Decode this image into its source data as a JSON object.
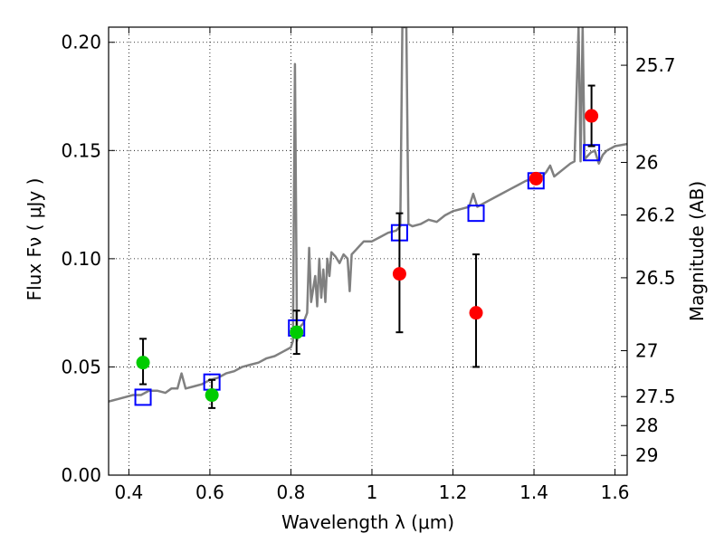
{
  "chart_data": {
    "type": "scatter",
    "xlabel": "Wavelength  λ (μm)",
    "ylabel": "Flux  Fν  ( μJy )",
    "y2label": "Magnitude (AB)",
    "xlim": [
      0.35,
      1.63
    ],
    "ylim": [
      0.0,
      0.207
    ],
    "grid": true,
    "x_ticks": [
      0.4,
      0.6,
      0.8,
      1.0,
      1.2,
      1.4,
      1.6
    ],
    "x_tick_labels": [
      "0.4",
      "0.6",
      "0.8",
      "1",
      "1.2",
      "1.4",
      "1.6"
    ],
    "y_ticks": [
      0.0,
      0.05,
      0.1,
      0.15,
      0.2
    ],
    "y_tick_labels": [
      "0.00",
      "0.05",
      "0.10",
      "0.15",
      "0.20"
    ],
    "magnitude_ticks": [
      {
        "label": "25.7",
        "flux": 0.1894
      },
      {
        "label": "26",
        "flux": 0.1445
      },
      {
        "label": "26.2",
        "flux": 0.1202
      },
      {
        "label": "26.5",
        "flux": 0.0912
      },
      {
        "label": "27",
        "flux": 0.0575
      },
      {
        "label": "27.5",
        "flux": 0.0363
      },
      {
        "label": "28",
        "flux": 0.0229
      },
      {
        "label": "29",
        "flux": 0.0091
      }
    ],
    "series": [
      {
        "style": "line",
        "color": "#808080",
        "points": [
          [
            0.35,
            0.034
          ],
          [
            0.37,
            0.035
          ],
          [
            0.39,
            0.036
          ],
          [
            0.41,
            0.037
          ],
          [
            0.43,
            0.037
          ],
          [
            0.45,
            0.039
          ],
          [
            0.47,
            0.039
          ],
          [
            0.49,
            0.038
          ],
          [
            0.505,
            0.04
          ],
          [
            0.52,
            0.04
          ],
          [
            0.53,
            0.047
          ],
          [
            0.54,
            0.04
          ],
          [
            0.56,
            0.041
          ],
          [
            0.58,
            0.042
          ],
          [
            0.6,
            0.044
          ],
          [
            0.62,
            0.045
          ],
          [
            0.64,
            0.047
          ],
          [
            0.66,
            0.048
          ],
          [
            0.68,
            0.05
          ],
          [
            0.7,
            0.051
          ],
          [
            0.72,
            0.052
          ],
          [
            0.74,
            0.054
          ],
          [
            0.76,
            0.055
          ],
          [
            0.78,
            0.057
          ],
          [
            0.8,
            0.059
          ],
          [
            0.805,
            0.062
          ],
          [
            0.81,
            0.19
          ],
          [
            0.815,
            0.062
          ],
          [
            0.82,
            0.068
          ],
          [
            0.83,
            0.07
          ],
          [
            0.84,
            0.075
          ],
          [
            0.845,
            0.105
          ],
          [
            0.85,
            0.08
          ],
          [
            0.86,
            0.092
          ],
          [
            0.865,
            0.078
          ],
          [
            0.87,
            0.1
          ],
          [
            0.875,
            0.082
          ],
          [
            0.88,
            0.095
          ],
          [
            0.885,
            0.08
          ],
          [
            0.89,
            0.1
          ],
          [
            0.895,
            0.092
          ],
          [
            0.9,
            0.103
          ],
          [
            0.91,
            0.101
          ],
          [
            0.92,
            0.098
          ],
          [
            0.93,
            0.102
          ],
          [
            0.94,
            0.1
          ],
          [
            0.945,
            0.085
          ],
          [
            0.95,
            0.102
          ],
          [
            0.96,
            0.104
          ],
          [
            0.97,
            0.106
          ],
          [
            0.98,
            0.108
          ],
          [
            1.0,
            0.108
          ],
          [
            1.02,
            0.11
          ],
          [
            1.04,
            0.112
          ],
          [
            1.06,
            0.113
          ],
          [
            1.07,
            0.115
          ],
          [
            1.075,
            0.207
          ],
          [
            1.085,
            0.207
          ],
          [
            1.09,
            0.116
          ],
          [
            1.1,
            0.115
          ],
          [
            1.12,
            0.116
          ],
          [
            1.14,
            0.118
          ],
          [
            1.16,
            0.117
          ],
          [
            1.18,
            0.12
          ],
          [
            1.2,
            0.122
          ],
          [
            1.22,
            0.123
          ],
          [
            1.24,
            0.124
          ],
          [
            1.25,
            0.13
          ],
          [
            1.26,
            0.124
          ],
          [
            1.28,
            0.126
          ],
          [
            1.3,
            0.128
          ],
          [
            1.32,
            0.13
          ],
          [
            1.34,
            0.132
          ],
          [
            1.36,
            0.134
          ],
          [
            1.38,
            0.136
          ],
          [
            1.4,
            0.137
          ],
          [
            1.42,
            0.138
          ],
          [
            1.43,
            0.14
          ],
          [
            1.44,
            0.143
          ],
          [
            1.45,
            0.138
          ],
          [
            1.47,
            0.141
          ],
          [
            1.49,
            0.144
          ],
          [
            1.5,
            0.145
          ],
          [
            1.51,
            0.207
          ],
          [
            1.515,
            0.145
          ],
          [
            1.52,
            0.207
          ],
          [
            1.525,
            0.146
          ],
          [
            1.53,
            0.147
          ],
          [
            1.54,
            0.149
          ],
          [
            1.55,
            0.15
          ],
          [
            1.56,
            0.144
          ],
          [
            1.57,
            0.148
          ],
          [
            1.58,
            0.15
          ],
          [
            1.6,
            0.152
          ],
          [
            1.63,
            0.153
          ]
        ]
      },
      {
        "style": "open-square",
        "color": "#0000ff",
        "points": [
          [
            0.435,
            0.036
          ],
          [
            0.605,
            0.043
          ],
          [
            0.814,
            0.068
          ],
          [
            1.068,
            0.112
          ],
          [
            1.257,
            0.121
          ],
          [
            1.405,
            0.136
          ],
          [
            1.542,
            0.149
          ]
        ]
      },
      {
        "style": "filled-circle-errorbar",
        "color": "#00cc00",
        "points": [
          {
            "x": 0.435,
            "y": 0.052,
            "yerr_low": 0.042,
            "yerr_high": 0.063
          },
          {
            "x": 0.605,
            "y": 0.037,
            "yerr_low": 0.031,
            "yerr_high": 0.044
          },
          {
            "x": 0.814,
            "y": 0.066,
            "yerr_low": 0.056,
            "yerr_high": 0.076
          }
        ]
      },
      {
        "style": "filled-circle-errorbar",
        "color": "#ff0000",
        "points": [
          {
            "x": 1.068,
            "y": 0.093,
            "yerr_low": 0.066,
            "yerr_high": 0.121
          },
          {
            "x": 1.257,
            "y": 0.075,
            "yerr_low": 0.05,
            "yerr_high": 0.102
          },
          {
            "x": 1.405,
            "y": 0.137,
            "yerr_low": 0.136,
            "yerr_high": 0.138
          },
          {
            "x": 1.542,
            "y": 0.166,
            "yerr_low": 0.152,
            "yerr_high": 0.18
          }
        ]
      }
    ]
  }
}
